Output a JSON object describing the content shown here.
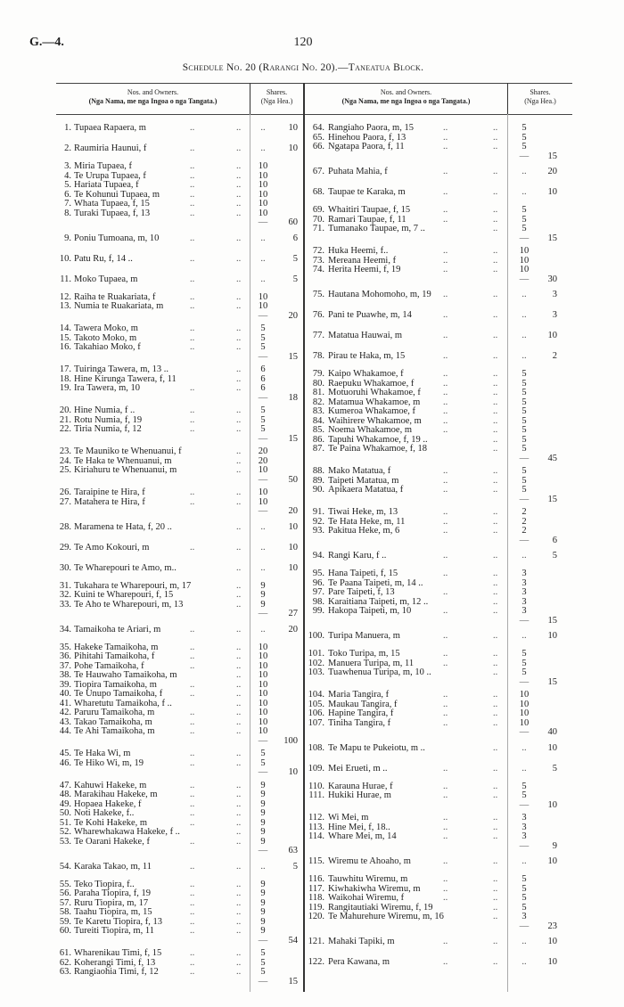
{
  "header": {
    "ref": "G.—4.",
    "page": "120",
    "title": "Schedule No. 20 (Rarangi No. 20).—Taneatua Block."
  },
  "table_header": {
    "left": {
      "owners": "Nos. and Owners.",
      "owners_maori": "(Nga Nama, me nga Ingoa o nga Tangata.)",
      "shares": "Shares.",
      "shares_maori": "(Nga Hea.)"
    },
    "right": {
      "owners": "Nos. and Owners.",
      "owners_maori": "(Nga Nama, me nga Ingoa o nga Tangata.)",
      "shares": "Shares.",
      "shares_maori": "(Nga Hea.)"
    }
  },
  "leader": "..",
  "rule": "—",
  "columns": [
    {
      "groups": [
        {
          "entries": [
            {
              "no": "1.",
              "name": "Tupaea Rapaera, m",
              "share": 10
            }
          ]
        },
        {
          "entries": [
            {
              "no": "2.",
              "name": "Raumiria Haunui, f",
              "share": 10
            }
          ]
        },
        {
          "entries": [
            {
              "no": "3.",
              "name": "Miria Tupaea, f",
              "share": 10
            },
            {
              "no": "4.",
              "name": "Te Urupa Tupaea, f",
              "share": 10
            },
            {
              "no": "5.",
              "name": "Hariata Tupaea, f",
              "share": 10
            },
            {
              "no": "6.",
              "name": "Te Kohunui Tupaea, m",
              "share": 10
            },
            {
              "no": "7.",
              "name": "Whata Tupaea, f, 15",
              "share": 10
            },
            {
              "no": "8.",
              "name": "Turaki Tupaea, f, 13",
              "share": 10
            }
          ],
          "total": 60
        },
        {
          "entries": [
            {
              "no": "9.",
              "name": "Poniu Tumoana, m, 10",
              "share": 6
            }
          ]
        },
        {
          "entries": [
            {
              "no": "10.",
              "name": "Patu Ru, f, 14 ..",
              "share": 5
            }
          ]
        },
        {
          "entries": [
            {
              "no": "11.",
              "name": "Moko Tupaea, m",
              "share": 5
            }
          ]
        },
        {
          "entries": [
            {
              "no": "12.",
              "name": "Raiha te Ruakariata, f",
              "share": 10
            },
            {
              "no": "13.",
              "name": "Numia te Ruakariata, m",
              "share": 10
            }
          ],
          "total": 20
        },
        {
          "entries": [
            {
              "no": "14.",
              "name": "Tawera Moko, m",
              "share": 5
            },
            {
              "no": "15.",
              "name": "Takoto Moko, m",
              "share": 5
            },
            {
              "no": "16.",
              "name": "Takahiao Moko, f",
              "share": 5
            }
          ],
          "total": 15
        },
        {
          "entries": [
            {
              "no": "17.",
              "name": "Tuiringa Tawera, m, 13 ..",
              "share": 6,
              "lead": 1
            },
            {
              "no": "18.",
              "name": "Hine Kirunga Tawera, f, 11",
              "share": 6,
              "lead": 1
            },
            {
              "no": "19.",
              "name": "Ira Tawera, m, 10",
              "share": 6
            }
          ],
          "total": 18
        },
        {
          "entries": [
            {
              "no": "20.",
              "name": "Hine Numia, f ..",
              "share": 5
            },
            {
              "no": "21.",
              "name": "Rotu Numia, f, 19",
              "share": 5
            },
            {
              "no": "22.",
              "name": "Tiria Numia, f, 12",
              "share": 5
            }
          ],
          "total": 15
        },
        {
          "entries": [
            {
              "no": "23.",
              "name": "Te Mauniko te Whenuanui, f",
              "share": 20,
              "lead": 1
            },
            {
              "no": "24.",
              "name": "Te Haka te Whenuanui, m",
              "share": 20,
              "lead": 1
            },
            {
              "no": "25.",
              "name": "Kiriahuru te Whenuanui, m",
              "share": 10,
              "lead": 1
            }
          ],
          "total": 50
        },
        {
          "entries": [
            {
              "no": "26.",
              "name": "Taraipine te Hira, f",
              "share": 10
            },
            {
              "no": "27.",
              "name": "Matahera te Hira, f",
              "share": 10
            }
          ],
          "total": 20
        },
        {
          "entries": [
            {
              "no": "28.",
              "name": "Maramena te Hata, f, 20 ..",
              "share": 10,
              "lead": 1
            }
          ]
        },
        {
          "entries": [
            {
              "no": "29.",
              "name": "Te Amo Kokouri, m",
              "share": 10
            }
          ]
        },
        {
          "entries": [
            {
              "no": "30.",
              "name": "Te Wharepouri te Amo, m..",
              "share": 10,
              "lead": 1
            }
          ]
        },
        {
          "entries": [
            {
              "no": "31.",
              "name": "Tukahara te Wharepouri, m, 17",
              "share": 9,
              "lead": 1
            },
            {
              "no": "32.",
              "name": "Kuini te Wharepouri, f, 15",
              "share": 9,
              "lead": 1
            },
            {
              "no": "33.",
              "name": "Te Aho te Wharepouri, m, 13",
              "share": 9,
              "lead": 1
            }
          ],
          "total": 27
        },
        {
          "entries": [
            {
              "no": "34.",
              "name": "Tamaikoha te Ariari, m",
              "share": 20
            }
          ]
        },
        {
          "entries": [
            {
              "no": "35.",
              "name": "Hakeke Tamaikoha, m",
              "share": 10
            },
            {
              "no": "36.",
              "name": "Pihitahi Tamaikoha, f",
              "share": 10
            },
            {
              "no": "37.",
              "name": "Pohe Tamaikoha, f",
              "share": 10
            },
            {
              "no": "38.",
              "name": "Te Hauwaho Tamaikoha, m",
              "share": 10,
              "lead": 1
            },
            {
              "no": "39.",
              "name": "Tiopira Tamaikoha, m",
              "share": 10
            },
            {
              "no": "40.",
              "name": "Te Unupo Tamaikoha, f",
              "share": 10
            },
            {
              "no": "41.",
              "name": "Wharetutu Tamaikoha, f ..",
              "share": 10,
              "lead": 1
            },
            {
              "no": "42.",
              "name": "Paruru Tamaikoha, m",
              "share": 10
            },
            {
              "no": "43.",
              "name": "Takao Tamaikoha, m",
              "share": 10
            },
            {
              "no": "44.",
              "name": "Te Ahi Tamaikoha, m",
              "share": 10
            }
          ],
          "total": 100
        },
        {
          "entries": [
            {
              "no": "45.",
              "name": "Te Haka Wi, m",
              "share": 5
            },
            {
              "no": "46.",
              "name": "Te Hiko Wi, m, 19",
              "share": 5
            }
          ],
          "total": 10
        },
        {
          "entries": [
            {
              "no": "47.",
              "name": "Kahuwi Hakeke, m",
              "share": 9
            },
            {
              "no": "48.",
              "name": "Marakihau Hakeke, m",
              "share": 9
            },
            {
              "no": "49.",
              "name": "Hopaea Hakeke, f",
              "share": 9
            },
            {
              "no": "50.",
              "name": "Noti Hakeke, f..",
              "share": 9
            },
            {
              "no": "51.",
              "name": "Te Kohi Hakeke, m",
              "share": 9
            },
            {
              "no": "52.",
              "name": "Wharewhakawa Hakeke, f ..",
              "share": 9,
              "lead": 1
            },
            {
              "no": "53.",
              "name": "Te Oarani Hakeke, f",
              "share": 9
            }
          ],
          "total": 63
        },
        {
          "entries": [
            {
              "no": "54.",
              "name": "Karaka Takao, m, 11",
              "share": 5
            }
          ]
        },
        {
          "entries": [
            {
              "no": "55.",
              "name": "Teko Tiopira, f..",
              "share": 9
            },
            {
              "no": "56.",
              "name": "Paraha Tiopira, f, 19",
              "share": 9
            },
            {
              "no": "57.",
              "name": "Ruru Tiopira, m, 17",
              "share": 9
            },
            {
              "no": "58.",
              "name": "Taahu Tiopira, m, 15",
              "share": 9
            },
            {
              "no": "59.",
              "name": "Te Karetu Tiopira, f, 13",
              "share": 9
            },
            {
              "no": "60.",
              "name": "Tureiti Tiopira, m, 11",
              "share": 9
            }
          ],
          "total": 54
        },
        {
          "entries": [
            {
              "no": "61.",
              "name": "Wharenikau Timi, f, 15",
              "share": 5
            },
            {
              "no": "62.",
              "name": "Koherangi Timi, f, 13",
              "share": 5
            },
            {
              "no": "63.",
              "name": "Rangiaohia Timi, f, 12",
              "share": 5
            }
          ],
          "total": 15
        }
      ]
    },
    {
      "groups": [
        {
          "entries": [
            {
              "no": "64.",
              "name": "Rangiaho Paora, m, 15",
              "share": 5
            },
            {
              "no": "65.",
              "name": "Hinehou Paora, f, 13",
              "share": 5
            },
            {
              "no": "66.",
              "name": "Ngatapa Paora, f, 11",
              "share": 5
            }
          ],
          "total": 15
        },
        {
          "entries": [
            {
              "no": "67.",
              "name": "Puhata Mahia, f",
              "share": 20
            }
          ]
        },
        {
          "entries": [
            {
              "no": "68.",
              "name": "Taupae te Karaka, m",
              "share": 10
            }
          ]
        },
        {
          "entries": [
            {
              "no": "69.",
              "name": "Whaitiri Taupae, f, 15",
              "share": 5
            },
            {
              "no": "70.",
              "name": "Ramari Taupae, f, 11",
              "share": 5
            },
            {
              "no": "71.",
              "name": "Tumanako Taupae, m, 7 ..",
              "share": 5,
              "lead": 1
            }
          ],
          "total": 15
        },
        {
          "entries": [
            {
              "no": "72.",
              "name": "Huka Heemi, f..",
              "share": 10
            },
            {
              "no": "73.",
              "name": "Mereana Heemi, f",
              "share": 10
            },
            {
              "no": "74.",
              "name": "Herita Heemi, f, 19",
              "share": 10
            }
          ],
          "total": 30
        },
        {
          "entries": [
            {
              "no": "75.",
              "name": "Hautana Mohomoho, m, 19",
              "share": 3
            }
          ]
        },
        {
          "entries": [
            {
              "no": "76.",
              "name": "Pani te Puawhe, m, 14",
              "share": 3
            }
          ]
        },
        {
          "entries": [
            {
              "no": "77.",
              "name": "Matatua Hauwai, m",
              "share": 10
            }
          ]
        },
        {
          "entries": [
            {
              "no": "78.",
              "name": "Pirau te Haka, m, 15",
              "share": 2
            }
          ]
        },
        {
          "entries": [
            {
              "no": "79.",
              "name": "Kaipo Whakamoe, f",
              "share": 5
            },
            {
              "no": "80.",
              "name": "Raepuku Whakamoe, f",
              "share": 5
            },
            {
              "no": "81.",
              "name": "Motuoruhi Whakamoe, f",
              "share": 5
            },
            {
              "no": "82.",
              "name": "Matamua Whakamoe, m",
              "share": 5
            },
            {
              "no": "83.",
              "name": "Kumeroa Whakamoe, f",
              "share": 5
            },
            {
              "no": "84.",
              "name": "Waihirere Whakamoe, m",
              "share": 5
            },
            {
              "no": "85.",
              "name": "Noema Whakamoe, m",
              "share": 5
            },
            {
              "no": "86.",
              "name": "Tapuhi Whakamoe, f, 19 ..",
              "share": 5,
              "lead": 1
            },
            {
              "no": "87.",
              "name": "Te Paina Whakamoe, f, 18",
              "share": 5,
              "lead": 1
            }
          ],
          "total": 45
        },
        {
          "entries": [
            {
              "no": "88.",
              "name": "Mako Matatua, f",
              "share": 5
            },
            {
              "no": "89.",
              "name": "Taipeti Matatua, m",
              "share": 5
            },
            {
              "no": "90.",
              "name": "Apikaera Matatua, f",
              "share": 5
            }
          ],
          "total": 15
        },
        {
          "entries": [
            {
              "no": "91.",
              "name": "Tiwai Heke, m, 13",
              "share": 2
            },
            {
              "no": "92.",
              "name": "Te Hata Heke, m, 11",
              "share": 2
            },
            {
              "no": "93.",
              "name": "Pakitua Heke, m, 6",
              "share": 2
            }
          ],
          "total": 6
        },
        {
          "entries": [
            {
              "no": "94.",
              "name": "Rangi Karu, f ..",
              "share": 5
            }
          ]
        },
        {
          "entries": [
            {
              "no": "95.",
              "name": "Hana Taipeti, f, 15",
              "share": 3
            },
            {
              "no": "96.",
              "name": "Te Paana Taipeti, m, 14 ..",
              "share": 3,
              "lead": 1
            },
            {
              "no": "97.",
              "name": "Pare Taipeti, f, 13",
              "share": 3
            },
            {
              "no": "98.",
              "name": "Karaitiana Taipeti, m, 12 ..",
              "share": 3,
              "lead": 1
            },
            {
              "no": "99.",
              "name": "Hakopa Taipeti, m, 10",
              "share": 3
            }
          ],
          "total": 15
        },
        {
          "entries": [
            {
              "no": "100.",
              "name": "Turipa Manuera, m",
              "share": 10
            }
          ]
        },
        {
          "entries": [
            {
              "no": "101.",
              "name": "Toko Turipa, m, 15",
              "share": 5
            },
            {
              "no": "102.",
              "name": "Manuera Turipa, m, 11",
              "share": 5
            },
            {
              "no": "103.",
              "name": "Tuawhenua Turipa, m, 10 ..",
              "share": 5,
              "lead": 1
            }
          ],
          "total": 15
        },
        {
          "entries": [
            {
              "no": "104.",
              "name": "Maria Tangira, f",
              "share": 10
            },
            {
              "no": "105.",
              "name": "Maukau Tangira, f",
              "share": 10
            },
            {
              "no": "106.",
              "name": "Hapine Tangira, f",
              "share": 10
            },
            {
              "no": "107.",
              "name": "Tiniha Tangira, f",
              "share": 10
            }
          ],
          "total": 40
        },
        {
          "entries": [
            {
              "no": "108.",
              "name": "Te Mapu te Pukeiotu, m ..",
              "share": 10,
              "lead": 1
            }
          ]
        },
        {
          "entries": [
            {
              "no": "109.",
              "name": "Mei Erueti, m ..",
              "share": 5
            }
          ]
        },
        {
          "entries": [
            {
              "no": "110.",
              "name": "Karauna Hurae, f",
              "share": 5
            },
            {
              "no": "111.",
              "name": "Hukiki Hurae, m",
              "share": 5
            }
          ],
          "total": 10
        },
        {
          "entries": [
            {
              "no": "112.",
              "name": "Wi Mei, m",
              "share": 3
            },
            {
              "no": "113.",
              "name": "Hine Mei, f, 18..",
              "share": 3
            },
            {
              "no": "114.",
              "name": "Whare Mei, m, 14",
              "share": 3
            }
          ],
          "total": 9
        },
        {
          "entries": [
            {
              "no": "115.",
              "name": "Wiremu te Ahoaho, m",
              "share": 10
            }
          ]
        },
        {
          "entries": [
            {
              "no": "116.",
              "name": "Tauwhitu Wiremu, m",
              "share": 5
            },
            {
              "no": "117.",
              "name": "Kiwhakiwha Wiremu, m",
              "share": 5
            },
            {
              "no": "118.",
              "name": "Waikohai Wiremu, f",
              "share": 5
            },
            {
              "no": "119.",
              "name": "Rangitautiaki Wiremu, f, 19",
              "share": 5,
              "lead": 1
            },
            {
              "no": "120.",
              "name": "Te Mahurehure Wiremu, m, 16",
              "share": 3,
              "lead": 1
            }
          ],
          "total": 23
        },
        {
          "entries": [
            {
              "no": "121.",
              "name": "Mahaki Tapiki, m",
              "share": 10
            }
          ]
        },
        {
          "entries": [
            {
              "no": "122.",
              "name": "Pera Kawana, m",
              "share": 10
            }
          ]
        }
      ]
    }
  ]
}
